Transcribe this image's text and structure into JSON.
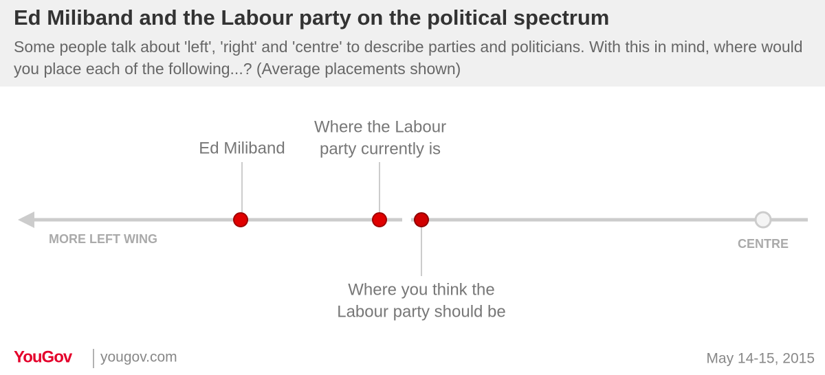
{
  "header": {
    "title": "Ed Miliband and the Labour party on the political spectrum",
    "subtitle": "Some people talk about 'left', 'right' and 'centre' to describe parties and politicians. With this in mind, where would you place each of the following...? (Average placements shown)"
  },
  "axis": {
    "left_label": "MORE LEFT WING",
    "right_label": "CENTRE"
  },
  "nodes": [
    {
      "label": [
        "Ed Miliband"
      ]
    },
    {
      "label": [
        "Where the Labour",
        "party currently is"
      ]
    },
    {
      "label": [
        "Where you think the",
        "Labour party should be"
      ]
    }
  ],
  "footer": {
    "brand": "YouGov",
    "site": "yougov.com",
    "date": "May 14-15, 2015"
  }
}
